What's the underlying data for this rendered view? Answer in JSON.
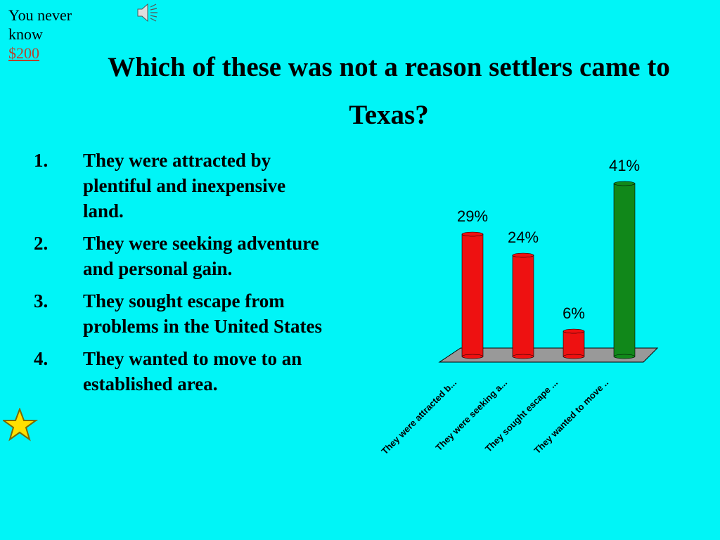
{
  "slide": {
    "corner_text": "You never know",
    "link": "$200",
    "title": "Which of these was not a reason settlers came to Texas?",
    "list": [
      {
        "number": "1.",
        "text": "They were attracted by plentiful and inexpensive land."
      },
      {
        "number": "2.",
        "text": "They were seeking adventure and personal gain."
      },
      {
        "number": "3.",
        "text": "They sought escape from problems in the United States"
      },
      {
        "number": "4.",
        "text": "They wanted to move to an established area."
      }
    ]
  },
  "chart_data": {
    "type": "bar",
    "categories": [
      "They were attracted b...",
      "They were seeking a...",
      "They sought escape ...",
      "They wanted to move .."
    ],
    "values": [
      29,
      24,
      6,
      41
    ],
    "value_labels": [
      "29%",
      "24%",
      "6%",
      "41%"
    ],
    "colors": [
      "#ee1111",
      "#ee1111",
      "#ee1111",
      "#11881a"
    ]
  }
}
